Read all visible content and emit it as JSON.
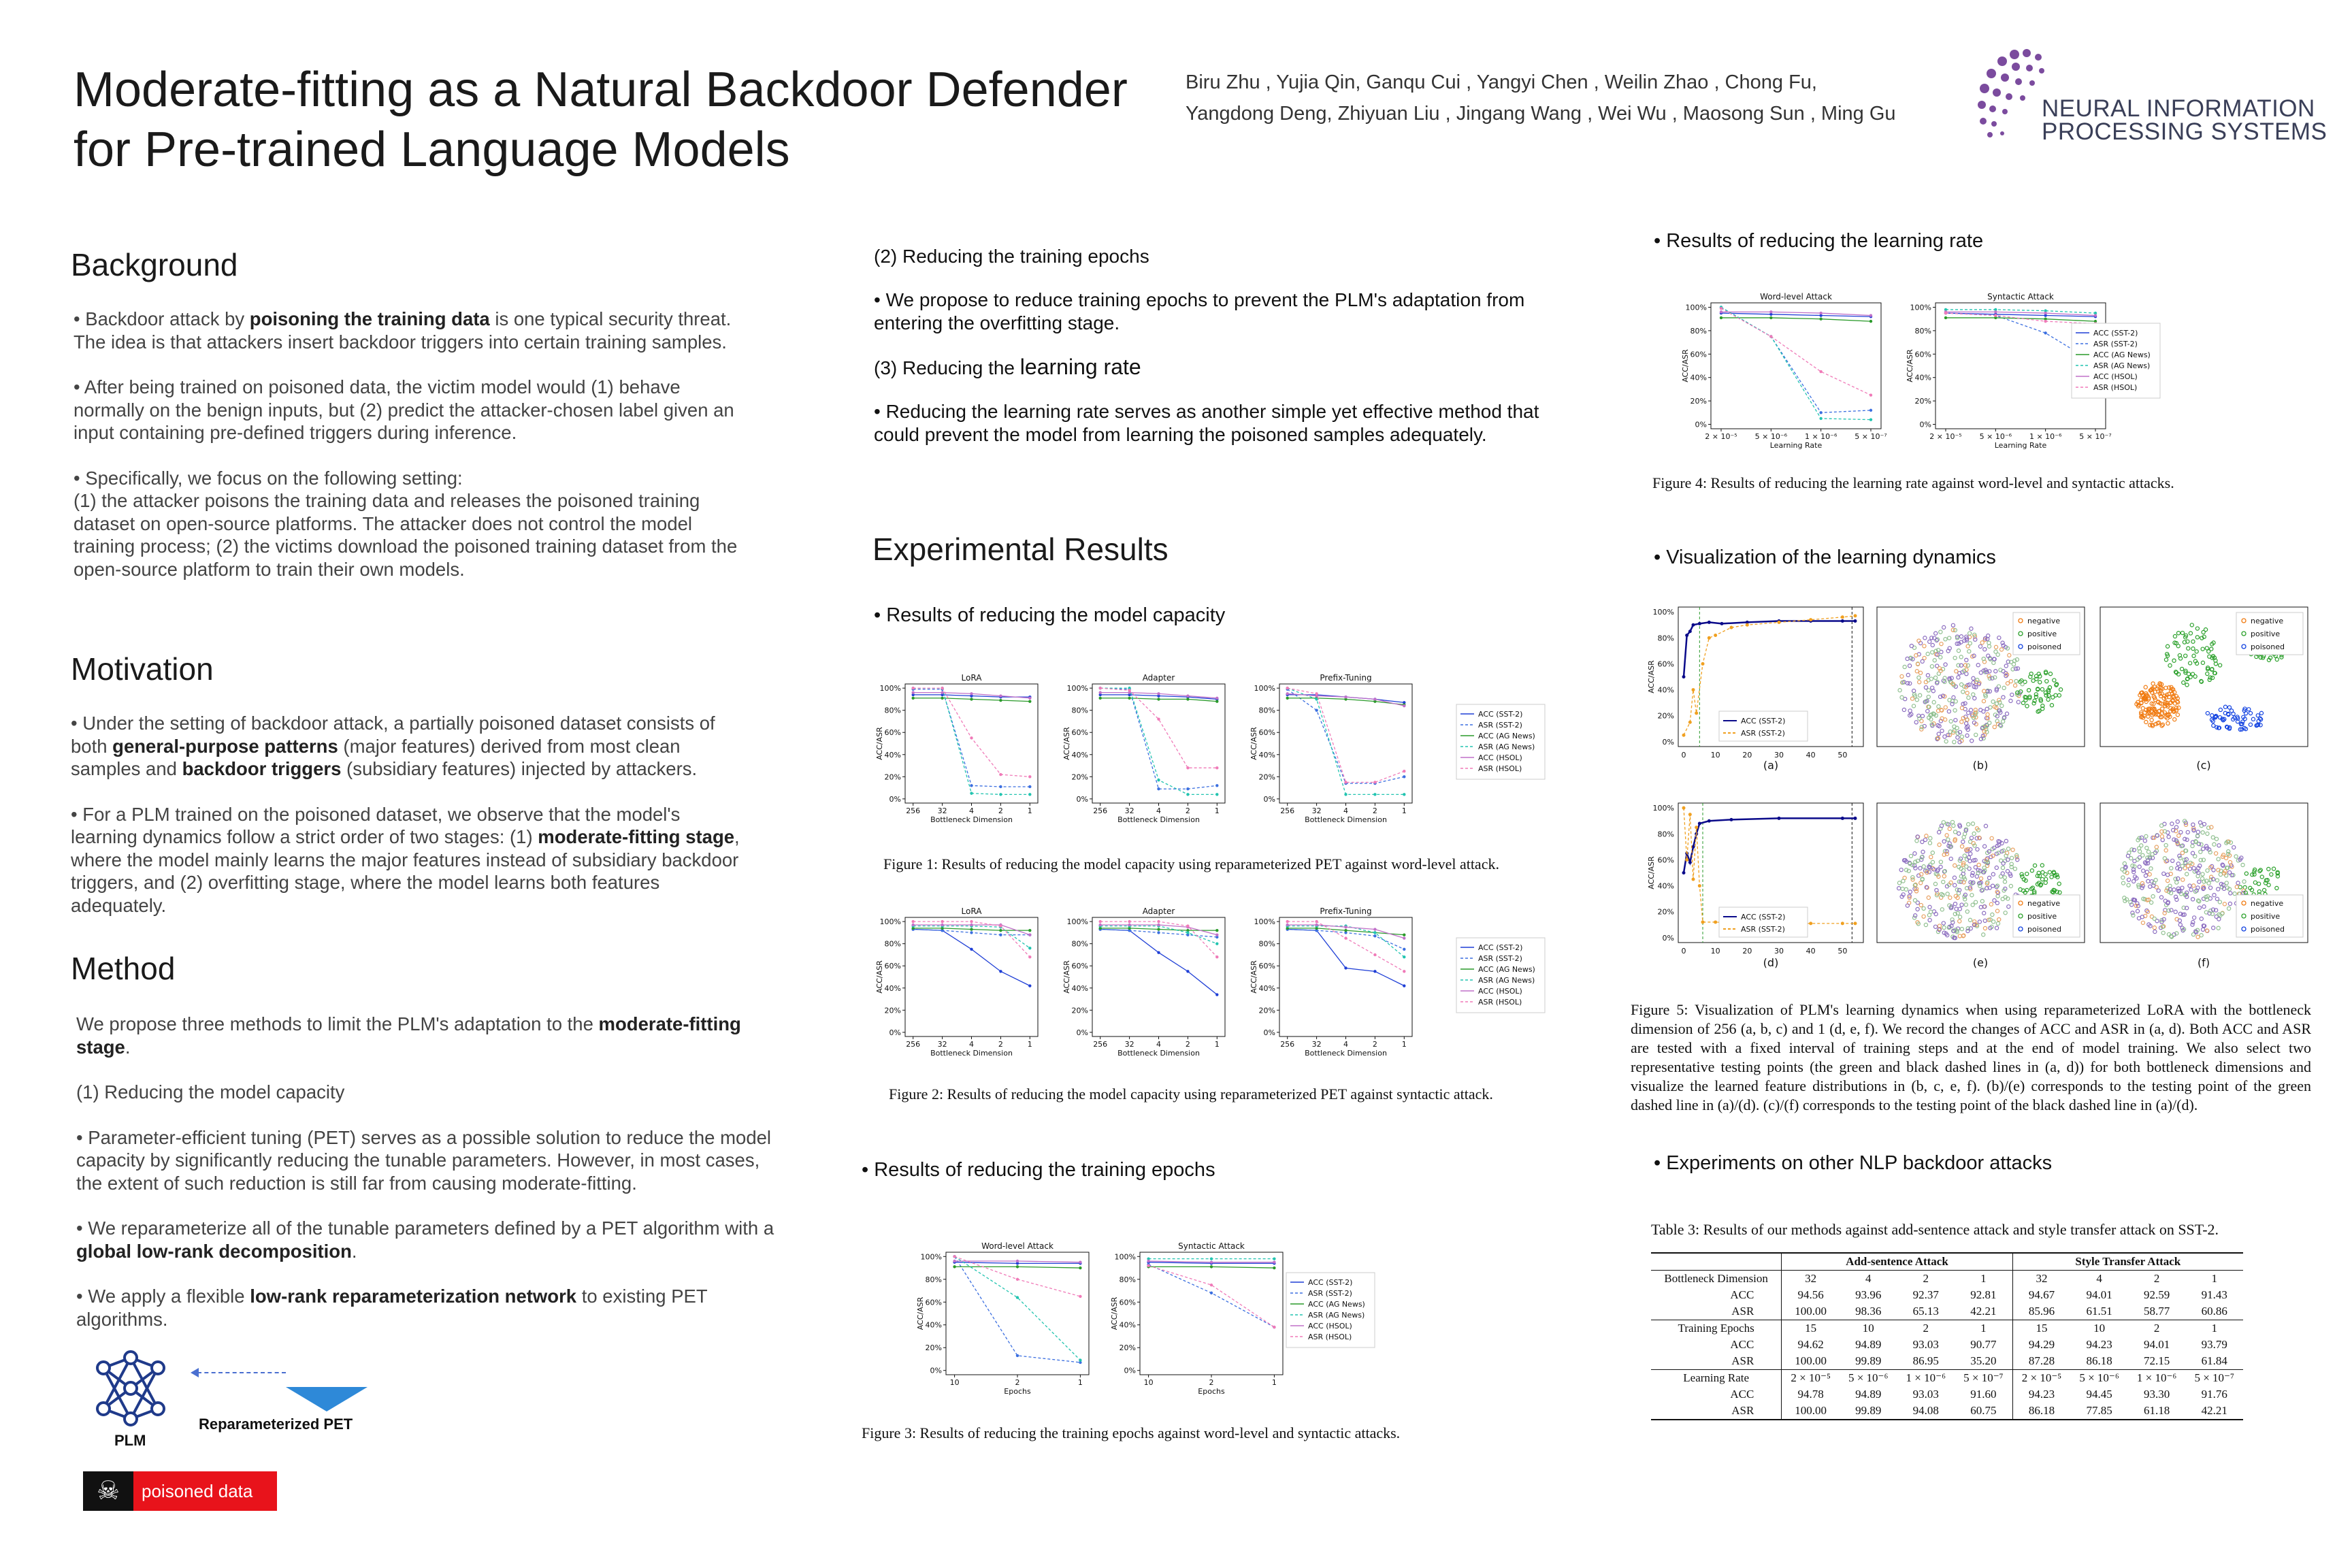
{
  "header": {
    "title_line1": "Moderate-fitting as a Natural Backdoor Defender",
    "title_line2": "for Pre-trained Language Models",
    "authors_line1": "Biru Zhu , Yujia Qin, Ganqu Cui , Yangyi Chen , Weilin Zhao , Chong Fu,",
    "authors_line2": "Yangdong Deng, Zhiyuan Liu , Jingang Wang , Wei Wu , Maosong Sun , Ming Gu",
    "logo_line1": "NEURAL INFORMATION",
    "logo_line2": "PROCESSING SYSTEMS"
  },
  "background": {
    "heading": "Background",
    "p1_pre": "• Backdoor attack by ",
    "p1_bold": "poisoning the training data",
    "p1_post": " is one typical security threat. The idea is that attackers insert backdoor triggers into certain training samples.",
    "p2": "• After being trained on poisoned data, the victim model would (1) behave normally on the benign inputs, but (2) predict the attacker-chosen label given an input containing pre-defined triggers during inference.",
    "p3a": "• Specifically, we focus on the following setting:",
    "p3b": "(1) the attacker poisons the training data and releases the poisoned training dataset on open-source platforms. The attacker does not control the model training process; (2) the victims download the poisoned training dataset from the open-source platform to train their own models."
  },
  "motivation": {
    "heading": "Motivation",
    "p1_pre": "• Under the setting of backdoor attack, a partially poisoned dataset consists of both ",
    "p1_b1": "general-purpose patterns",
    "p1_mid": " (major features) derived from most clean samples and ",
    "p1_b2": "backdoor triggers",
    "p1_post": " (subsidiary features) injected by attackers.",
    "p2_pre": "• For a PLM trained on the poisoned dataset, we observe that the model's learning dynamics follow a strict order of two stages: (1) ",
    "p2_b1": "moderate-fitting stage",
    "p2_post": ", where the model mainly learns the major features instead of subsidiary backdoor triggers, and (2) overfitting stage, where the model learns both features adequately."
  },
  "method": {
    "heading": "Method",
    "p1_pre": "We propose three methods to limit the PLM's adaptation to the ",
    "p1_bold": "moderate-fitting stage",
    "p1_post": ".",
    "p2": "(1) Reducing the model capacity",
    "p3": "•  Parameter-efficient  tuning (PET) serves as a possible solution to reduce the model capacity by significantly reducing the tunable parameters. However,  in most cases, the extent of such reduction is still far from causing moderate-fitting.",
    "p4_pre": "•  We reparameterize  all of the tunable parameters defined by a PET algorithm with a ",
    "p4_bold": "global low-rank decomposition",
    "p4_post": ".",
    "p5_pre": "• We apply a flexible  ",
    "p5_bold": "low-rank reparameterization network",
    "p5_post": " to existing PET algorithms.",
    "diagram_plm": "PLM",
    "diagram_pet": "Reparameterized PET",
    "diagram_poison": "poisoned data"
  },
  "col2": {
    "epochs_title": "(2) Reducing the training epochs",
    "epochs_text": "• We propose to reduce training epochs to prevent the PLM's adaptation from entering the overfitting stage.",
    "lr_title_pre": "(3) Reducing the ",
    "lr_title_big": "learning rate",
    "lr_text": "• Reducing the learning rate serves as another simple yet effective  method that could prevent the model from learning the poisoned samples adequately.",
    "exp_heading": "Experimental Results",
    "capacity_title": "• Results of reducing the model capacity",
    "fig1_caption": "Figure 1: Results of reducing the model capacity using reparameterized PET against word-level attack.",
    "fig2_caption": "Figure 2: Results of reducing the model capacity using reparameterized PET against syntactic attack.",
    "epochs_results_title": "• Results of reducing the training epochs",
    "fig3_caption": "Figure 3: Results of reducing the training epochs against word-level and syntactic attacks."
  },
  "col3": {
    "lr_results_title": "• Results of reducing the learning rate",
    "fig4_caption": "Figure 4: Results of reducing the learning rate against word-level and syntactic attacks.",
    "vis_title": "• Visualization of the learning dynamics",
    "fig5_caption": "Figure 5: Visualization of PLM's learning dynamics when using reparameterized LoRA with the bottleneck dimension of 256 (a, b, c) and 1 (d, e, f). We record the changes of ACC and ASR in (a, d). Both ACC and ASR are tested with a fixed interval of training steps and at the end of model training. We also select two representative testing points (the green and black dashed lines in (a, d)) for both bottleneck dimensions and visualize the learned feature distributions in (b, c, e, f). (b)/(e) corresponds to the testing point of the green dashed line in (a)/(d). (c)/(f) corresponds to the testing point of the black dashed line in (a)/(d).",
    "panel_labels": [
      "(a)",
      "(b)",
      "(c)",
      "(d)",
      "(e)",
      "(f)"
    ],
    "scatter_legend": [
      "negative",
      "positive",
      "poisoned"
    ],
    "other_title": "• Experiments on other NLP backdoor attacks",
    "table_caption": "Table 3: Results of our methods against add-sentence attack and style transfer attack on SST-2.",
    "table_headers": [
      "Add-sentence Attack",
      "Style Transfer Attack"
    ]
  },
  "table3": {
    "groups": [
      {
        "rows": [
          {
            "label": "Bottleneck Dimension",
            "a": [
              "32",
              "4",
              "2",
              "1"
            ],
            "b": [
              "32",
              "4",
              "2",
              "1"
            ]
          },
          {
            "label": "ACC",
            "a": [
              "94.56",
              "93.96",
              "92.37",
              "92.81"
            ],
            "b": [
              "94.67",
              "94.01",
              "92.59",
              "91.43"
            ]
          },
          {
            "label": "ASR",
            "a": [
              "100.00",
              "98.36",
              "65.13",
              "42.21"
            ],
            "b": [
              "85.96",
              "61.51",
              "58.77",
              "60.86"
            ]
          }
        ]
      },
      {
        "rows": [
          {
            "label": "Training Epochs",
            "a": [
              "15",
              "10",
              "2",
              "1"
            ],
            "b": [
              "15",
              "10",
              "2",
              "1"
            ]
          },
          {
            "label": "ACC",
            "a": [
              "94.62",
              "94.89",
              "93.03",
              "90.77"
            ],
            "b": [
              "94.29",
              "94.23",
              "94.01",
              "93.79"
            ]
          },
          {
            "label": "ASR",
            "a": [
              "100.00",
              "99.89",
              "86.95",
              "35.20"
            ],
            "b": [
              "87.28",
              "86.18",
              "72.15",
              "61.84"
            ]
          }
        ]
      },
      {
        "rows": [
          {
            "label": "Learning Rate",
            "a": [
              "2 × 10⁻⁵",
              "5 × 10⁻⁶",
              "1 × 10⁻⁶",
              "5 × 10⁻⁷"
            ],
            "b": [
              "2 × 10⁻⁵",
              "5 × 10⁻⁶",
              "1 × 10⁻⁶",
              "5 × 10⁻⁷"
            ]
          },
          {
            "label": "ACC",
            "a": [
              "94.78",
              "94.89",
              "93.03",
              "91.60"
            ],
            "b": [
              "94.23",
              "94.45",
              "93.30",
              "91.76"
            ]
          },
          {
            "label": "ASR",
            "a": [
              "100.00",
              "99.89",
              "94.08",
              "60.75"
            ],
            "b": [
              "86.18",
              "77.85",
              "61.18",
              "42.21"
            ]
          }
        ]
      }
    ]
  },
  "chart_data": {
    "palette": {
      "acc_sst2": "#1f3fd6",
      "asr_sst2": "#3b6fe0",
      "acc_ag": "#2a9a2a",
      "asr_ag": "#22c4b0",
      "acc_hsol": "#c070c8",
      "asr_hsol": "#f07ab8"
    },
    "legend": [
      "ACC (SST-2)",
      "ASR (SST-2)",
      "ACC (AG News)",
      "ASR (AG News)",
      "ACC (HSOL)",
      "ASR (HSOL)"
    ],
    "yticks": [
      "0%",
      "20%",
      "40%",
      "60%",
      "80%",
      "100%"
    ],
    "ylabel": "ACC/ASR",
    "fig1": {
      "xlabel": "Bottleneck Dimension",
      "categories": [
        "256",
        "32",
        "4",
        "2",
        "1"
      ],
      "panels": [
        {
          "title": "LoRA",
          "series": [
            [
              94,
              94,
              93,
              92,
              92
            ],
            [
              99,
              99,
              12,
              11,
              11
            ],
            [
              91,
              91,
              90,
              89,
              88
            ],
            [
              100,
              100,
              5,
              4,
              4
            ],
            [
              96,
              96,
              95,
              93,
              91
            ],
            [
              100,
              100,
              55,
              22,
              20
            ]
          ]
        },
        {
          "title": "Adapter",
          "series": [
            [
              94,
              94,
              93,
              92,
              90
            ],
            [
              100,
              99,
              9,
              9,
              12
            ],
            [
              91,
              91,
              90,
              90,
              88
            ],
            [
              100,
              100,
              17,
              4,
              4
            ],
            [
              96,
              96,
              95,
              93,
              91
            ],
            [
              100,
              98,
              72,
              28,
              28
            ]
          ]
        },
        {
          "title": "Prefix-Tuning",
          "series": [
            [
              94,
              94,
              92,
              90,
              87
            ],
            [
              99,
              80,
              14,
              14,
              20
            ],
            [
              91,
              91,
              90,
              88,
              85
            ],
            [
              100,
              90,
              4,
              4,
              4
            ],
            [
              95,
              93,
              92,
              90,
              84
            ],
            [
              100,
              95,
              15,
              15,
              25
            ]
          ]
        }
      ]
    },
    "fig2": {
      "xlabel": "Bottleneck Dimension",
      "categories": [
        "256",
        "32",
        "4",
        "2",
        "1"
      ],
      "panels": [
        {
          "title": "LoRA",
          "series": [
            [
              93,
              92,
              75,
              55,
              42
            ],
            [
              93,
              92,
              90,
              88,
              88
            ],
            [
              94,
              94,
              93,
              92,
              92
            ],
            [
              96,
              96,
              96,
              95,
              76
            ],
            [
              97,
              97,
              97,
              97,
              88
            ],
            [
              100,
              100,
              100,
              96,
              68
            ]
          ]
        },
        {
          "title": "Adapter",
          "series": [
            [
              93,
              92,
              72,
              55,
              34
            ],
            [
              93,
              92,
              90,
              88,
              86
            ],
            [
              94,
              94,
              93,
              92,
              92
            ],
            [
              96,
              96,
              96,
              90,
              80
            ],
            [
              97,
              97,
              97,
              95,
              88
            ],
            [
              100,
              100,
              100,
              96,
              68
            ]
          ]
        },
        {
          "title": "Prefix-Tuning",
          "series": [
            [
              93,
              92,
              58,
              55,
              42
            ],
            [
              93,
              92,
              90,
              87,
              75
            ],
            [
              94,
              94,
              92,
              90,
              88
            ],
            [
              96,
              96,
              96,
              90,
              68
            ],
            [
              97,
              97,
              95,
              93,
              85
            ],
            [
              100,
              100,
              85,
              70,
              55
            ]
          ]
        }
      ]
    },
    "fig3": {
      "xlabel": "Epochs",
      "categories": [
        "10",
        "2",
        "1"
      ],
      "panels": [
        {
          "title": "Word-level Attack",
          "series": [
            [
              95,
              94,
              94
            ],
            [
              100,
              13,
              7
            ],
            [
              91,
              91,
              90
            ],
            [
              100,
              64,
              9
            ],
            [
              96,
              96,
              95
            ],
            [
              100,
              80,
              65
            ]
          ]
        },
        {
          "title": "Syntactic Attack",
          "series": [
            [
              95,
              94,
              94
            ],
            [
              93,
              68,
              38
            ],
            [
              91,
              91,
              90
            ],
            [
              98,
              98,
              98
            ],
            [
              96,
              95,
              95
            ],
            [
              92,
              75,
              38
            ]
          ]
        }
      ]
    },
    "fig4": {
      "xlabel": "Learning Rate",
      "categories": [
        "2 × 10⁻⁵",
        "5 × 10⁻⁶",
        "1 × 10⁻⁶",
        "5 × 10⁻⁷"
      ],
      "panels": [
        {
          "title": "Word-level Attack",
          "series": [
            [
              95,
              94,
              93,
              92
            ],
            [
              100,
              75,
              10,
              12
            ],
            [
              91,
              91,
              90,
              88
            ],
            [
              100,
              75,
              5,
              4
            ],
            [
              96,
              96,
              95,
              93
            ],
            [
              99,
              75,
              45,
              25
            ]
          ]
        },
        {
          "title": "Syntactic Attack",
          "series": [
            [
              95,
              94,
              93,
              92
            ],
            [
              95,
              93,
              78,
              52
            ],
            [
              91,
              91,
              90,
              88
            ],
            [
              98,
              98,
              97,
              95
            ],
            [
              96,
              96,
              95,
              93
            ],
            [
              95,
              93,
              88,
              86
            ]
          ]
        }
      ]
    },
    "fig5": {
      "xlabel_ticks": [
        "0",
        "10",
        "20",
        "30",
        "40",
        "50"
      ],
      "legend": [
        "ACC (SST-2)",
        "ASR (SST-2)"
      ],
      "a": {
        "acc": [
          [
            0,
            50
          ],
          [
            1,
            82
          ],
          [
            2,
            85
          ],
          [
            3,
            90
          ],
          [
            5,
            91
          ],
          [
            8,
            92
          ],
          [
            12,
            91
          ],
          [
            20,
            92
          ],
          [
            30,
            93
          ],
          [
            40,
            93
          ],
          [
            50,
            93
          ],
          [
            54,
            93
          ]
        ],
        "asr": [
          [
            0,
            5
          ],
          [
            2,
            15
          ],
          [
            3,
            40
          ],
          [
            4,
            22
          ],
          [
            6,
            60
          ],
          [
            8,
            80
          ],
          [
            10,
            82
          ],
          [
            15,
            88
          ],
          [
            20,
            90
          ],
          [
            30,
            92
          ],
          [
            40,
            94
          ],
          [
            50,
            96
          ],
          [
            54,
            97
          ]
        ]
      },
      "d": {
        "acc": [
          [
            0,
            50
          ],
          [
            1,
            65
          ],
          [
            2,
            58
          ],
          [
            3,
            70
          ],
          [
            4,
            80
          ],
          [
            5,
            88
          ],
          [
            8,
            90
          ],
          [
            15,
            91
          ],
          [
            30,
            92
          ],
          [
            50,
            92
          ],
          [
            54,
            92
          ]
        ],
        "asr": [
          [
            0,
            100
          ],
          [
            1,
            60
          ],
          [
            2,
            95
          ],
          [
            3,
            45
          ],
          [
            4,
            85
          ],
          [
            5,
            40
          ],
          [
            6,
            12
          ],
          [
            10,
            12
          ],
          [
            20,
            11
          ],
          [
            30,
            10
          ],
          [
            40,
            11
          ],
          [
            50,
            11
          ],
          [
            54,
            11
          ]
        ]
      }
    }
  }
}
